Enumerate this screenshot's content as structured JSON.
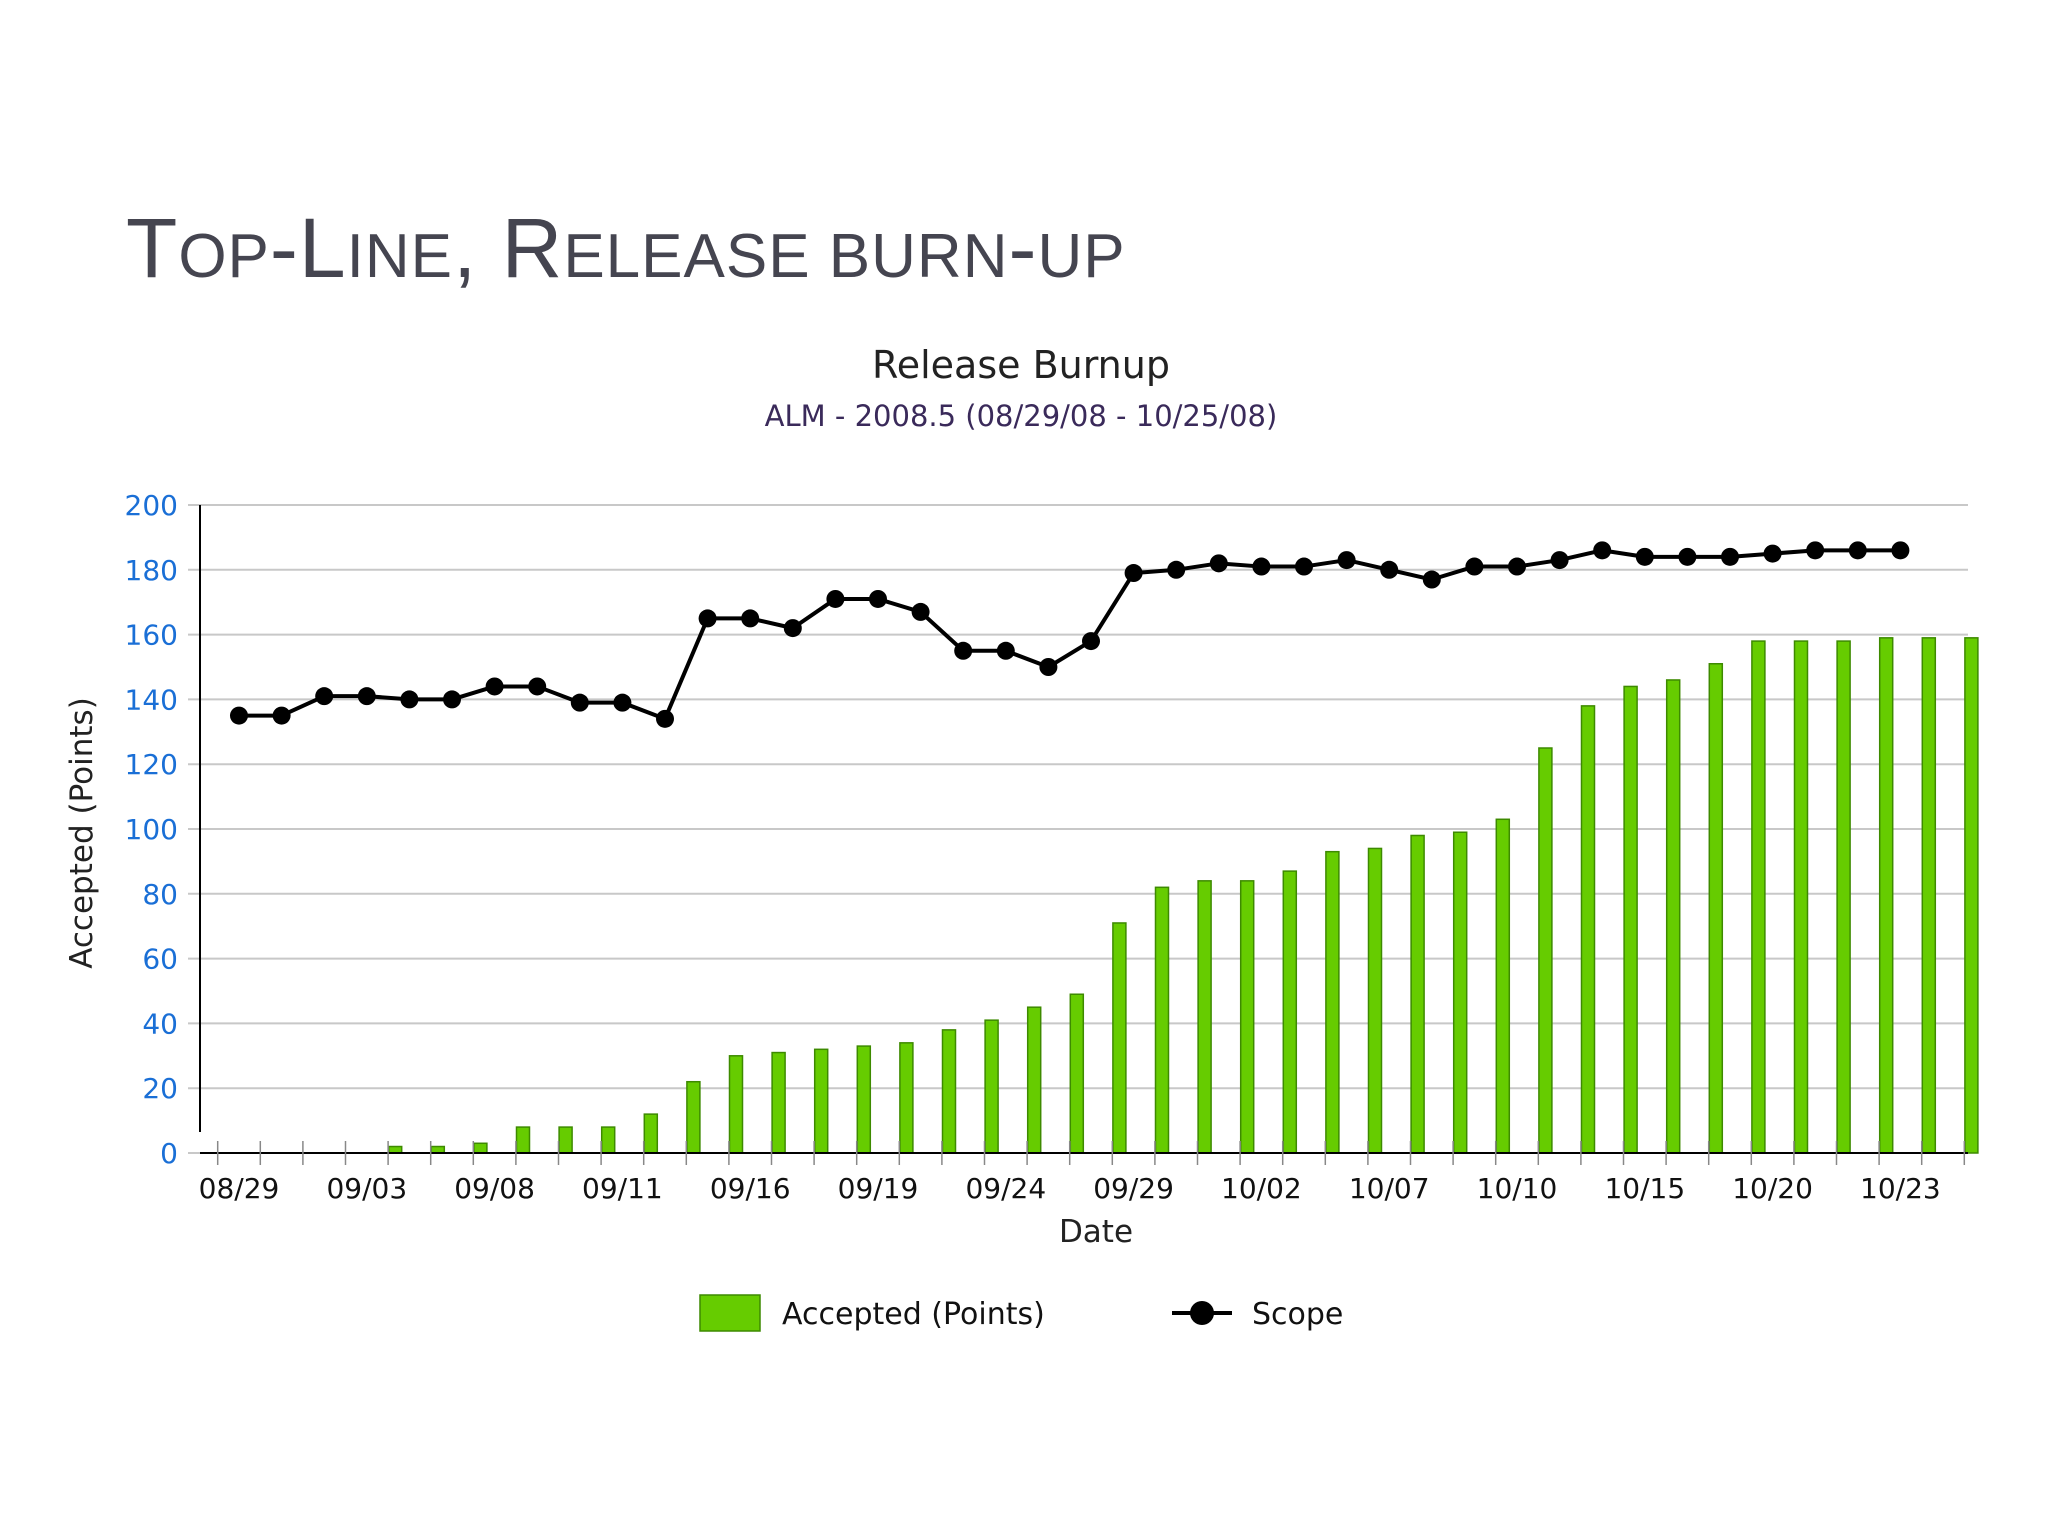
{
  "slide": {
    "title_parts": [
      {
        "text": "T",
        "style": "cap"
      },
      {
        "text": "OP",
        "style": "sc"
      },
      {
        "text": "-L",
        "style": "cap"
      },
      {
        "text": "INE",
        "style": "sc"
      },
      {
        "text": ", R",
        "style": "cap"
      },
      {
        "text": "ELEASE BURN",
        "style": "sc"
      },
      {
        "text": "-",
        "style": "cap"
      },
      {
        "text": "UP",
        "style": "sc"
      }
    ]
  },
  "colors": {
    "bar_fill": "#66cc00",
    "bar_stroke": "#3d8a00",
    "line": "#000000",
    "grid": "#c8c8c8",
    "y_tick_text": "#1a6fd6",
    "text": "#222222",
    "subtitle": "#3a2a5a"
  },
  "chart_data": {
    "type": "bar",
    "title": "Release Burnup",
    "subtitle": "ALM - 2008.5 (08/29/08 - 10/25/08)",
    "xlabel": "Date",
    "ylabel": "Accepted (Points)",
    "ylim": [
      0,
      200
    ],
    "yticks": [
      0,
      20,
      40,
      60,
      80,
      100,
      120,
      140,
      160,
      180,
      200
    ],
    "grid": true,
    "legend_position": "bottom",
    "x_tick_labels": [
      "08/29",
      "09/03",
      "09/08",
      "09/11",
      "09/16",
      "09/19",
      "09/24",
      "09/29",
      "10/02",
      "10/07",
      "10/10",
      "10/15",
      "10/20",
      "10/23"
    ],
    "x_tick_label_indices": [
      0,
      3,
      6,
      9,
      12,
      15,
      18,
      21,
      24,
      27,
      30,
      33,
      36,
      39
    ],
    "series": [
      {
        "name": "Accepted (Points)",
        "type": "bar",
        "values": [
          0,
          0,
          2,
          2,
          3,
          8,
          8,
          8,
          12,
          22,
          30,
          31,
          32,
          33,
          34,
          38,
          41,
          45,
          49,
          71,
          82,
          84,
          84,
          87,
          93,
          94,
          98,
          99,
          103,
          125,
          138,
          144,
          146,
          151,
          158,
          158,
          158,
          159,
          159,
          159
        ]
      },
      {
        "name": "Scope",
        "type": "line",
        "values": [
          135,
          135,
          141,
          141,
          140,
          140,
          144,
          144,
          139,
          139,
          134,
          165,
          165,
          162,
          171,
          171,
          167,
          155,
          155,
          150,
          158,
          179,
          180,
          182,
          181,
          181,
          183,
          180,
          177,
          181,
          181,
          183,
          186,
          184,
          184,
          184,
          185,
          186,
          186,
          186
        ]
      }
    ]
  }
}
